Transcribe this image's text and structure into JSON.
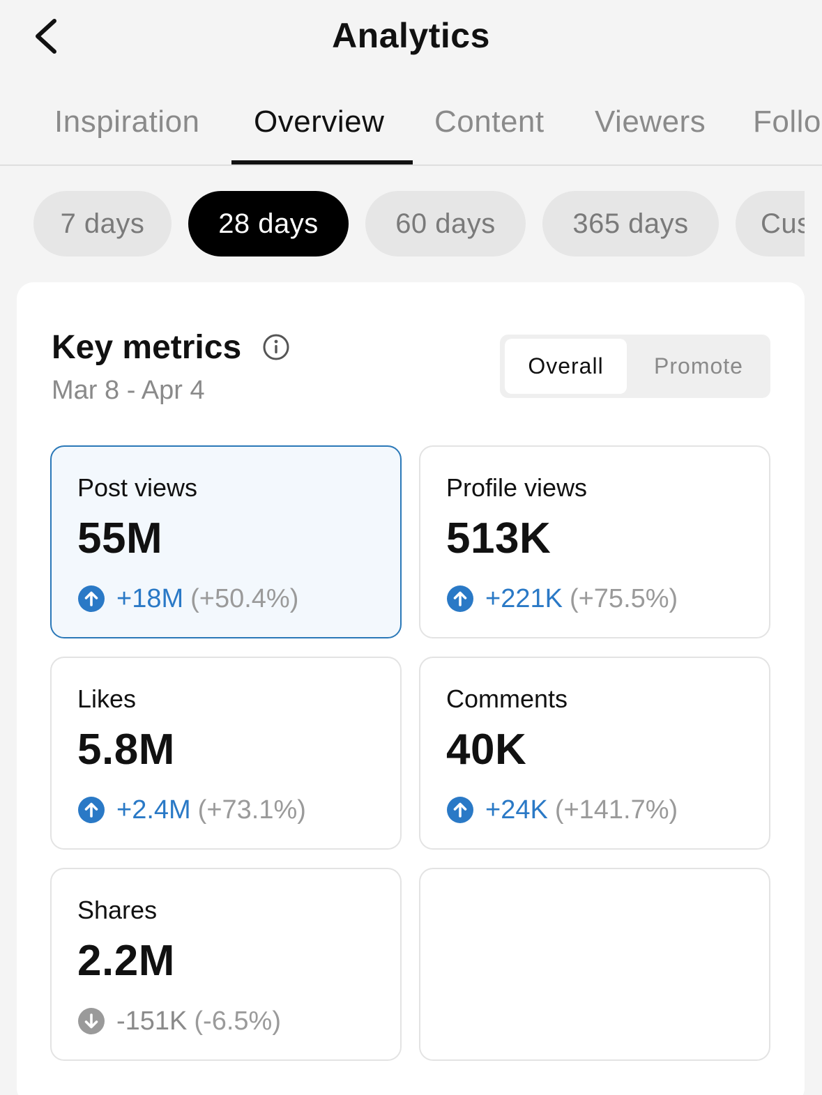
{
  "header": {
    "title": "Analytics"
  },
  "tabs": [
    {
      "label": "Inspiration",
      "active": false
    },
    {
      "label": "Overview",
      "active": true
    },
    {
      "label": "Content",
      "active": false
    },
    {
      "label": "Viewers",
      "active": false
    },
    {
      "label": "Follo",
      "active": false
    }
  ],
  "periods": [
    {
      "label": "7 days",
      "active": false
    },
    {
      "label": "28 days",
      "active": true
    },
    {
      "label": "60 days",
      "active": false
    },
    {
      "label": "365 days",
      "active": false
    },
    {
      "label": "Cus",
      "active": false
    }
  ],
  "key_metrics": {
    "title": "Key metrics",
    "date_range": "Mar 8 - Apr 4",
    "toggle": {
      "overall": "Overall",
      "promote": "Promote",
      "selected": "Overall"
    },
    "metrics": [
      {
        "label": "Post views",
        "value": "55M",
        "delta": "+18M",
        "pct": "(+50.4%)",
        "direction": "up",
        "selected": true
      },
      {
        "label": "Profile views",
        "value": "513K",
        "delta": "+221K",
        "pct": "(+75.5%)",
        "direction": "up"
      },
      {
        "label": "Likes",
        "value": "5.8M",
        "delta": "+2.4M",
        "pct": "(+73.1%)",
        "direction": "up"
      },
      {
        "label": "Comments",
        "value": "40K",
        "delta": "+24K",
        "pct": "(+141.7%)",
        "direction": "up"
      },
      {
        "label": "Shares",
        "value": "2.2M",
        "delta": "-151K",
        "pct": "(-6.5%)",
        "direction": "down"
      }
    ]
  },
  "colors": {
    "accent_up": "#2a79c6",
    "neutral_down": "#8a8a8a",
    "selected_tile_bg": "#f3f8fd",
    "selected_tile_border": "#2a78b8"
  },
  "icons": {
    "back": "chevron-left-icon",
    "info": "info-icon",
    "up": "arrow-up-circle-icon",
    "down": "arrow-down-circle-icon"
  }
}
